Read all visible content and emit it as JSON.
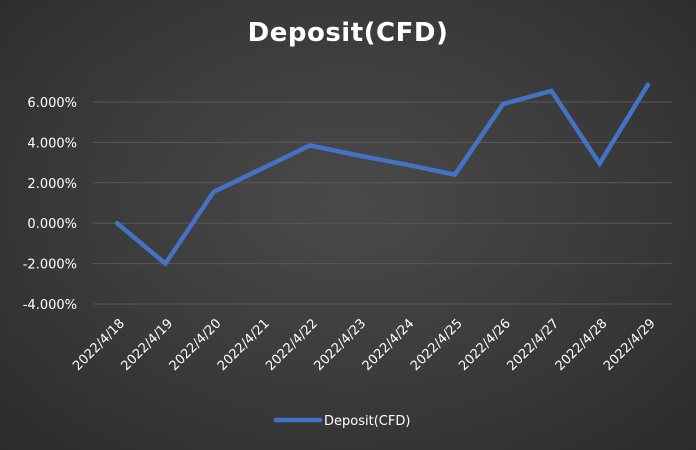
{
  "chart_data": {
    "type": "line",
    "title": "Deposit(CFD)",
    "x": [
      "2022/4/18",
      "2022/4/19",
      "2022/4/20",
      "2022/4/21",
      "2022/4/22",
      "2022/4/23",
      "2022/4/24",
      "2022/4/25",
      "2022/4/26",
      "2022/4/27",
      "2022/4/28",
      "2022/4/29"
    ],
    "series": [
      {
        "name": "Deposit(CFD)",
        "values": [
          0.0,
          -2.0,
          1.55,
          2.7,
          3.85,
          3.35,
          2.9,
          2.4,
          5.9,
          6.55,
          2.95,
          6.85
        ]
      }
    ],
    "ylim": [
      -4.0,
      6.0
    ],
    "y_ticks": [
      "6.000%",
      "4.000%",
      "2.000%",
      "0.000%",
      "-2.000%",
      "-4.000%"
    ],
    "y_tick_values": [
      6,
      4,
      2,
      0,
      -2,
      -4
    ],
    "grid": true,
    "legend_position": "bottom",
    "colors": {
      "line": "#4472C4",
      "grid": "#595959",
      "text": "#FFFFFF"
    }
  }
}
